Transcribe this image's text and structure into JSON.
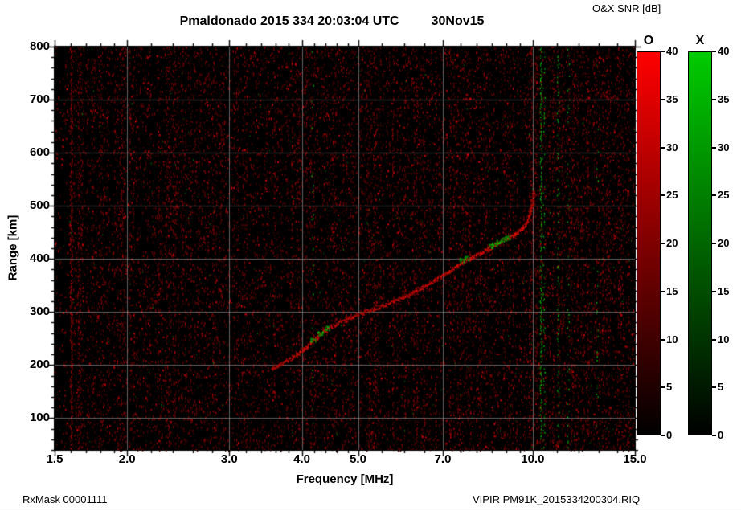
{
  "header": {
    "title": "Pmaldonado 2015 334 20:03:04 UTC",
    "date_label": "30Nov15",
    "colorbar_title": "O&X SNR [dB]"
  },
  "footer": {
    "left": "RxMask 00001111",
    "right": "VIPIR  PM91K_2015334200304.RIQ"
  },
  "chart_data": {
    "type": "heatmap",
    "title": "Pmaldonado 2015 334 20:03:04 UTC 30Nov15",
    "xlabel": "Frequency [MHz]",
    "ylabel": "Range [km]",
    "x_scale": "log",
    "xlim": [
      1.5,
      15.0
    ],
    "ylim": [
      40,
      800
    ],
    "x_ticks": [
      1.5,
      2.0,
      3.0,
      4.0,
      5.0,
      7.0,
      10.0,
      15.0
    ],
    "x_tick_labels": [
      "1.5",
      "2.0",
      "3.0",
      "4.0",
      "5.0",
      "7.0",
      "10.0",
      "15.0"
    ],
    "x_minor_ticks": [
      1.6,
      1.7,
      1.8,
      1.9,
      2.2,
      2.4,
      2.6,
      2.8,
      3.2,
      3.4,
      3.6,
      3.8,
      4.2,
      4.4,
      4.6,
      4.8,
      5.5,
      6.0,
      6.5,
      7.5,
      8.0,
      8.5,
      9.0,
      9.5,
      11.0,
      12.0,
      13.0,
      14.0
    ],
    "y_ticks": [
      100,
      200,
      300,
      400,
      500,
      600,
      700,
      800
    ],
    "grid": true,
    "background": "#000000",
    "units": "dB",
    "colorbars": [
      {
        "label": "O",
        "color": "#ff0000",
        "min": 0,
        "max": 40,
        "ticks": [
          0,
          5,
          10,
          15,
          20,
          25,
          30,
          35,
          40
        ]
      },
      {
        "label": "X",
        "color": "#00cc00",
        "min": 0,
        "max": 40,
        "ticks": [
          0,
          5,
          10,
          15,
          20,
          25,
          30,
          35,
          40
        ]
      }
    ],
    "o_trace": {
      "name": "O-mode echo trace",
      "points": [
        [
          3.55,
          193,
          0.5
        ],
        [
          3.7,
          204,
          0.55
        ],
        [
          3.85,
          215,
          0.6
        ],
        [
          4.0,
          228,
          0.7
        ],
        [
          4.15,
          243,
          0.8
        ],
        [
          4.3,
          260,
          0.85
        ],
        [
          4.45,
          271,
          0.7
        ],
        [
          4.6,
          279,
          0.6
        ],
        [
          4.8,
          288,
          0.6
        ],
        [
          5.0,
          296,
          0.55
        ],
        [
          5.2,
          303,
          0.5
        ],
        [
          5.5,
          312,
          0.55
        ],
        [
          5.8,
          322,
          0.6
        ],
        [
          6.1,
          333,
          0.6
        ],
        [
          6.4,
          345,
          0.65
        ],
        [
          6.7,
          357,
          0.7
        ],
        [
          7.0,
          370,
          0.75
        ],
        [
          7.3,
          383,
          0.8
        ],
        [
          7.6,
          396,
          0.9
        ],
        [
          7.9,
          405,
          0.85
        ],
        [
          8.2,
          414,
          0.9
        ],
        [
          8.5,
          424,
          1.0
        ],
        [
          8.8,
          433,
          1.0
        ],
        [
          9.1,
          441,
          0.95
        ],
        [
          9.4,
          450,
          0.9
        ],
        [
          9.6,
          459,
          0.8
        ],
        [
          9.8,
          473,
          0.7
        ],
        [
          9.9,
          488,
          0.6
        ],
        [
          9.97,
          508,
          0.5
        ],
        [
          10.02,
          528,
          0.4
        ]
      ]
    },
    "x_trace": {
      "name": "X-mode echo patches",
      "points": [
        [
          4.18,
          248,
          0.7
        ],
        [
          4.3,
          260,
          0.8
        ],
        [
          4.42,
          270,
          0.7
        ],
        [
          7.55,
          398,
          0.6
        ],
        [
          7.7,
          402,
          0.6
        ],
        [
          8.45,
          424,
          0.7
        ],
        [
          8.6,
          428,
          0.8
        ],
        [
          8.75,
          433,
          0.8
        ],
        [
          8.9,
          437,
          0.7
        ],
        [
          9.05,
          441,
          0.6
        ]
      ]
    },
    "rfi": {
      "red_streaks": [
        {
          "f": 1.6,
          "s": 0.8
        },
        {
          "f": 1.65,
          "s": 0.35
        },
        {
          "f": 1.95,
          "s": 0.2
        },
        {
          "f": 2.35,
          "s": 0.18
        },
        {
          "f": 2.75,
          "s": 0.15
        },
        {
          "f": 3.1,
          "s": 0.18
        },
        {
          "f": 3.45,
          "s": 0.12
        },
        {
          "f": 4.52,
          "s": 0.22
        },
        {
          "f": 4.9,
          "s": 0.18
        },
        {
          "f": 5.33,
          "s": 0.2
        },
        {
          "f": 5.75,
          "s": 0.15
        },
        {
          "f": 6.3,
          "s": 0.18
        },
        {
          "f": 6.8,
          "s": 0.12
        },
        {
          "f": 7.2,
          "s": 0.15
        },
        {
          "f": 8.05,
          "s": 0.15
        },
        {
          "f": 9.1,
          "s": 0.12
        },
        {
          "f": 9.9,
          "s": 0.25
        },
        {
          "f": 10.15,
          "s": 0.2
        },
        {
          "f": 10.85,
          "s": 0.18
        },
        {
          "f": 11.8,
          "s": 0.15
        },
        {
          "f": 12.4,
          "s": 0.18
        },
        {
          "f": 13.2,
          "s": 0.15
        },
        {
          "f": 14.2,
          "s": 0.12
        }
      ],
      "green_streaks": [
        {
          "f": 10.32,
          "s": 0.55
        },
        {
          "f": 10.45,
          "s": 0.15
        },
        {
          "f": 11.05,
          "s": 0.22
        },
        {
          "f": 11.5,
          "s": 0.12
        },
        {
          "f": 4.17,
          "s": 0.1
        },
        {
          "f": 12.9,
          "s": 0.08
        }
      ]
    },
    "noise": {
      "seed": 77,
      "column_density": 0.07,
      "bright_speckles": 2600,
      "green_speckles": 280
    }
  }
}
